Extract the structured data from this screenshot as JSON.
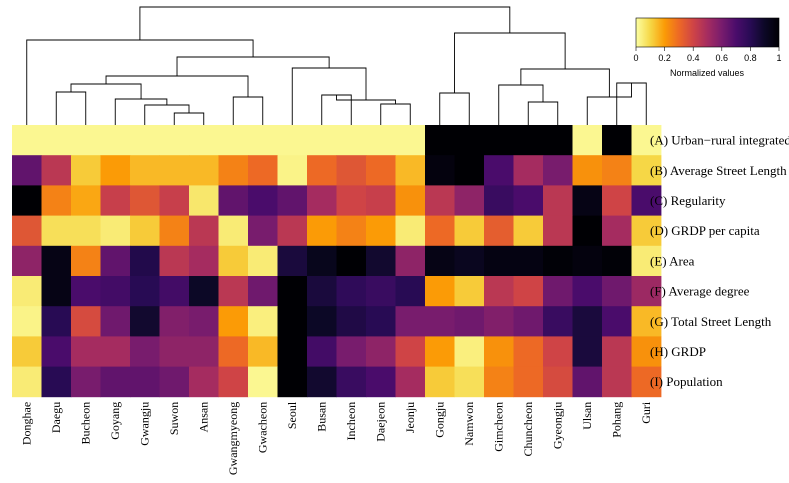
{
  "chart_data": {
    "type": "heatmap",
    "title": "",
    "colormap": "inferno (reversed): 0 = light yellow, 1 = black",
    "colorbar": {
      "title": "Normalized values",
      "ticks": [
        "0",
        "0.2",
        "0.4",
        "0.6",
        "0.8",
        "1"
      ],
      "range": [
        0,
        1
      ]
    },
    "columns": [
      "Donghae",
      "Daegu",
      "Bucheon",
      "Goyang",
      "Gwangju",
      "Suwon",
      "Ansan",
      "Gwangmyeong",
      "Gwacheon",
      "Seoul",
      "Busan",
      "Incheon",
      "Daejeon",
      "Jeonju",
      "Gongju",
      "Namwon",
      "Gimcheon",
      "Chuncheon",
      "Gyeongju",
      "Ulsan",
      "Pohang",
      "Guri"
    ],
    "rows": [
      "(A) Urban−rural integrated",
      "(B) Average Street Length",
      "(C) Regularity",
      "(D) GRDP per capita",
      "(E) Area",
      "(F) Average degree",
      "(G) Total Street Length",
      "(H) GRDP",
      "(I) Population"
    ],
    "values": [
      [
        0.02,
        0.02,
        0.02,
        0.02,
        0.02,
        0.02,
        0.02,
        0.02,
        0.02,
        0.02,
        0.02,
        0.02,
        0.02,
        0.02,
        1.0,
        1.0,
        1.0,
        1.0,
        1.0,
        0.02,
        1.0,
        0.02
      ],
      [
        0.65,
        0.45,
        0.12,
        0.2,
        0.15,
        0.15,
        0.15,
        0.25,
        0.3,
        0.03,
        0.3,
        0.35,
        0.3,
        0.15,
        0.97,
        1.0,
        0.7,
        0.5,
        0.6,
        0.22,
        0.25,
        0.1
      ],
      [
        1.0,
        0.25,
        0.18,
        0.42,
        0.35,
        0.42,
        0.06,
        0.65,
        0.7,
        0.65,
        0.5,
        0.4,
        0.42,
        0.22,
        0.45,
        0.55,
        0.75,
        0.7,
        0.45,
        0.95,
        0.4,
        0.7
      ],
      [
        0.35,
        0.08,
        0.08,
        0.05,
        0.12,
        0.25,
        0.45,
        0.05,
        0.6,
        0.45,
        0.2,
        0.25,
        0.2,
        0.05,
        0.3,
        0.12,
        0.33,
        0.12,
        0.45,
        1.0,
        0.5,
        0.12
      ],
      [
        0.55,
        0.95,
        0.25,
        0.65,
        0.82,
        0.45,
        0.5,
        0.12,
        0.05,
        0.85,
        0.93,
        1.0,
        0.88,
        0.55,
        0.95,
        0.92,
        0.96,
        0.96,
        0.99,
        0.97,
        0.99,
        0.05
      ],
      [
        0.05,
        0.95,
        0.7,
        0.72,
        0.8,
        0.72,
        0.9,
        0.45,
        0.62,
        1.0,
        0.85,
        0.78,
        0.75,
        0.8,
        0.2,
        0.12,
        0.45,
        0.4,
        0.62,
        0.7,
        0.62,
        0.52
      ],
      [
        0.03,
        0.8,
        0.38,
        0.62,
        0.88,
        0.58,
        0.6,
        0.2,
        0.04,
        1.0,
        0.9,
        0.83,
        0.8,
        0.6,
        0.6,
        0.62,
        0.58,
        0.62,
        0.75,
        0.85,
        0.7,
        0.15
      ],
      [
        0.12,
        0.7,
        0.5,
        0.5,
        0.6,
        0.55,
        0.55,
        0.3,
        0.15,
        1.0,
        0.72,
        0.6,
        0.55,
        0.4,
        0.2,
        0.04,
        0.22,
        0.3,
        0.4,
        0.85,
        0.45,
        0.22
      ],
      [
        0.05,
        0.8,
        0.6,
        0.65,
        0.65,
        0.62,
        0.5,
        0.4,
        0.02,
        1.0,
        0.88,
        0.75,
        0.7,
        0.5,
        0.12,
        0.08,
        0.25,
        0.3,
        0.38,
        0.65,
        0.45,
        0.3
      ]
    ]
  }
}
